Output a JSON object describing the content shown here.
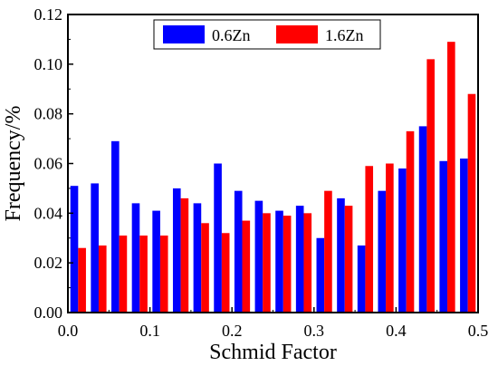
{
  "chart_data": {
    "type": "bar",
    "xlabel": "Schmid Factor",
    "ylabel": "Frequency/%",
    "xlim": [
      0.0,
      0.5
    ],
    "ylim": [
      0.0,
      0.12
    ],
    "x_ticks": [
      "0.0",
      "0.1",
      "0.2",
      "0.3",
      "0.4",
      "0.5"
    ],
    "y_ticks": [
      "0.00",
      "0.02",
      "0.04",
      "0.06",
      "0.08",
      "0.10",
      "0.12"
    ],
    "x_tick_values": [
      0.0,
      0.1,
      0.2,
      0.3,
      0.4,
      0.5
    ],
    "y_tick_values": [
      0.0,
      0.02,
      0.04,
      0.06,
      0.08,
      0.1,
      0.12
    ],
    "bin_centers": [
      0.0125,
      0.0375,
      0.0625,
      0.0875,
      0.1125,
      0.1375,
      0.1625,
      0.1875,
      0.2125,
      0.2375,
      0.2625,
      0.2875,
      0.3125,
      0.3375,
      0.3625,
      0.3875,
      0.4125,
      0.4375,
      0.4625,
      0.4875
    ],
    "series": [
      {
        "name": "0.6Zn",
        "color": "#0000ff",
        "values": [
          0.051,
          0.052,
          0.069,
          0.044,
          0.041,
          0.05,
          0.044,
          0.06,
          0.049,
          0.045,
          0.041,
          0.043,
          0.03,
          0.046,
          0.027,
          0.049,
          0.058,
          0.075,
          0.061,
          0.062
        ]
      },
      {
        "name": "1.6Zn",
        "color": "#ff0000",
        "values": [
          0.026,
          0.027,
          0.031,
          0.031,
          0.031,
          0.046,
          0.036,
          0.032,
          0.037,
          0.04,
          0.039,
          0.04,
          0.049,
          0.043,
          0.059,
          0.06,
          0.073,
          0.102,
          0.109,
          0.088
        ]
      }
    ],
    "legend_position": "top-center",
    "grid": false
  }
}
